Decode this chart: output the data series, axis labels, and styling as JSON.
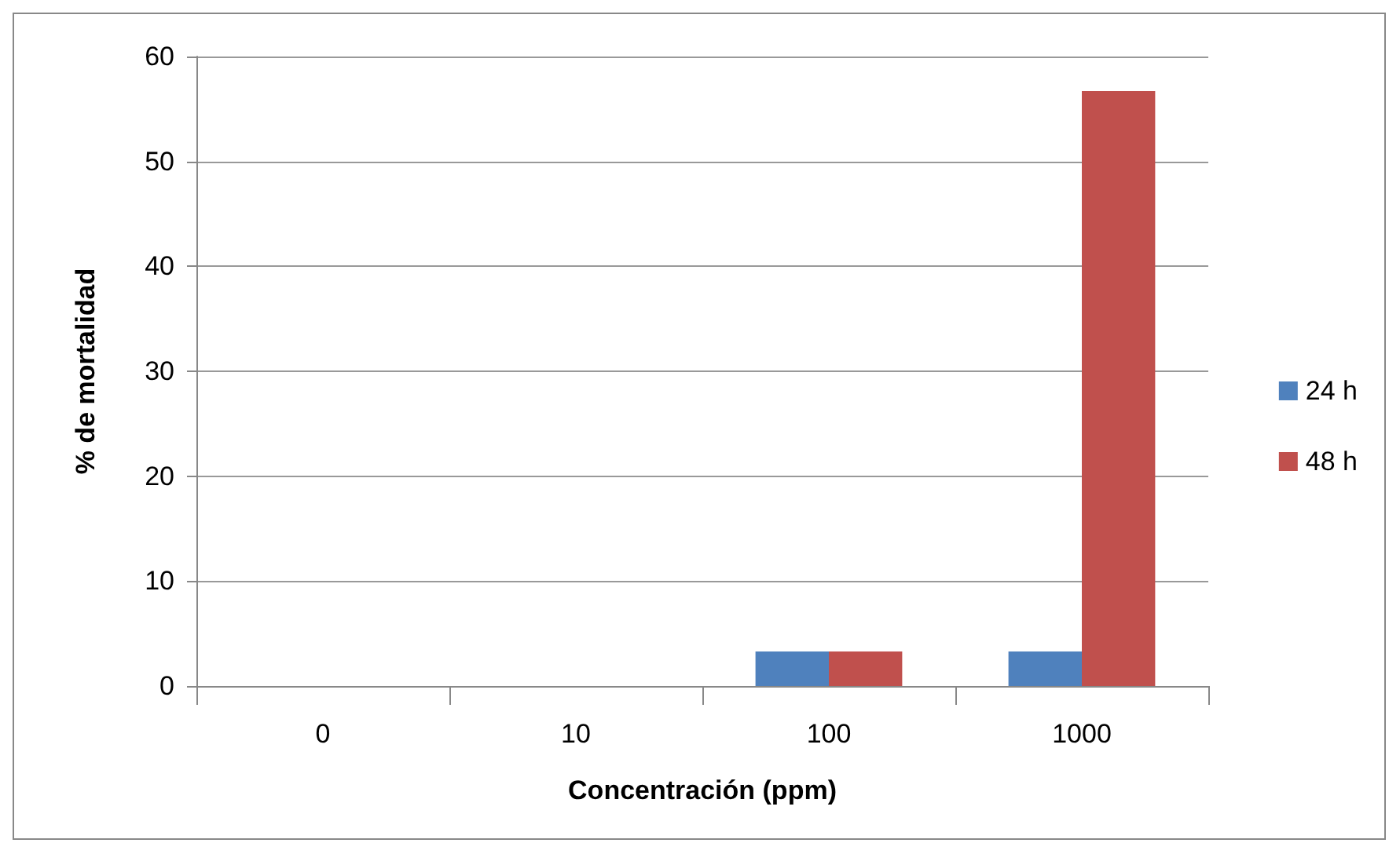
{
  "chart_data": {
    "type": "bar",
    "xlabel": "Concentración (ppm)",
    "ylabel": "% de mortalidad",
    "categories": [
      "0",
      "10",
      "100",
      "1000"
    ],
    "series": [
      {
        "name": "24 h",
        "color": "#4f81bd",
        "values": [
          0,
          0,
          3.3,
          3.3
        ]
      },
      {
        "name": "48 h",
        "color": "#c0504d",
        "values": [
          0,
          0,
          3.3,
          56.7
        ]
      }
    ],
    "ylim": [
      0,
      60
    ],
    "yticks": [
      0,
      10,
      20,
      30,
      40,
      50,
      60
    ],
    "grid": "y",
    "legend": "right"
  }
}
